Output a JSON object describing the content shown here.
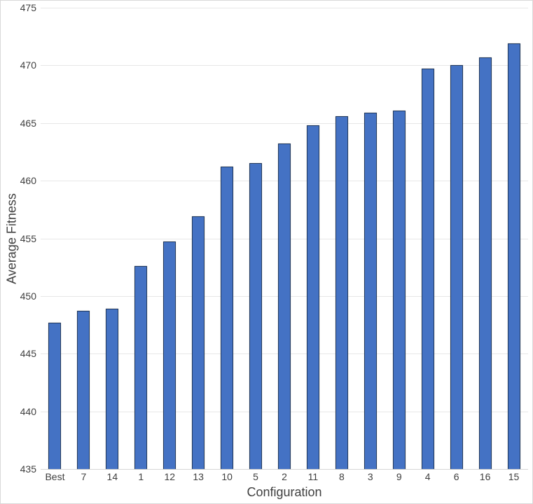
{
  "chart_data": {
    "type": "bar",
    "title": "",
    "xlabel": "Configuration",
    "ylabel": "Average Fitness",
    "categories": [
      "Best",
      "7",
      "14",
      "1",
      "12",
      "13",
      "10",
      "5",
      "2",
      "11",
      "8",
      "3",
      "9",
      "4",
      "6",
      "16",
      "15"
    ],
    "values": [
      447.7,
      448.7,
      448.9,
      452.6,
      454.7,
      456.9,
      461.2,
      461.5,
      463.2,
      464.8,
      465.6,
      465.9,
      466.1,
      469.7,
      470.0,
      470.7,
      471.9
    ],
    "ylim": [
      435,
      475
    ],
    "yticks": [
      435,
      440,
      445,
      450,
      455,
      460,
      465,
      470,
      475
    ],
    "grid": true,
    "legend": false,
    "colors": {
      "bar_fill": "#4472C4",
      "bar_border": "#223A5E",
      "gridline": "#E7E7E7",
      "axis_line": "#D6D6D6",
      "text": "#3F3F3F",
      "background": "#FFFFFF",
      "frame_border": "#D9D9D9"
    }
  }
}
